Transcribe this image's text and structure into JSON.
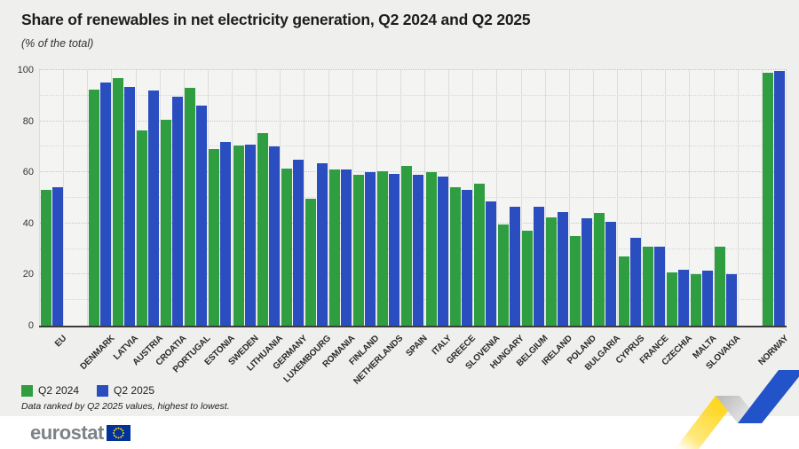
{
  "header": {
    "title": "Share of renewables in net electricity generation, Q2 2024 and Q2 2025",
    "subtitle": "(% of the total)"
  },
  "chart_data": {
    "type": "bar",
    "title": "Share of renewables in net electricity generation, Q2 2024 and Q2 2025",
    "ylabel": "% of the total",
    "ylim": [
      0,
      100
    ],
    "yticks": [
      0,
      20,
      40,
      60,
      80,
      100
    ],
    "grid": {
      "horizontal": "dotted line every 10 units",
      "vertical": "solid light line per category"
    },
    "legend_position": "bottom-left",
    "categories": [
      "EU",
      "DENMARK",
      "LATVIA",
      "AUSTRIA",
      "CROATIA",
      "PORTUGAL",
      "ESTONIA",
      "SWEDEN",
      "LITHUANIA",
      "GERMANY",
      "LUXEMBOURG",
      "ROMANIA",
      "FINLAND",
      "NETHERLANDS",
      "SPAIN",
      "ITALY",
      "GREECE",
      "SLOVENIA",
      "HUNGARY",
      "BELGIUM",
      "IRELAND",
      "POLAND",
      "BULGARIA",
      "CYPRUS",
      "FRANCE",
      "CZECHIA",
      "MALTA",
      "SLOVAKIA",
      "NORWAY"
    ],
    "series": [
      {
        "name": "Q2 2024",
        "color": "#2f9e41",
        "values": [
          53,
          92.5,
          97,
          76.5,
          80.5,
          93,
          69,
          70.5,
          75.5,
          61.5,
          49.5,
          61,
          59,
          60.5,
          62.5,
          60,
          54,
          55.5,
          39.5,
          37,
          42.5,
          35,
          44,
          27,
          31,
          21,
          20,
          31,
          99
        ]
      },
      {
        "name": "Q2 2025",
        "color": "#2a4dc0",
        "values": [
          54,
          95,
          93.5,
          92,
          89.5,
          86,
          72,
          71,
          70,
          65,
          63.5,
          61,
          60,
          59.5,
          59,
          58.5,
          53,
          48.5,
          46.5,
          46.5,
          44.5,
          42,
          40.5,
          34.5,
          31,
          22,
          21.5,
          20,
          99.5
        ]
      }
    ],
    "spacers_after_indices": [
      0,
      27
    ]
  },
  "legend": {
    "items": [
      {
        "label": "Q2 2024",
        "color": "#2f9e41"
      },
      {
        "label": "Q2 2025",
        "color": "#2a4dc0"
      }
    ]
  },
  "footnote": "Data ranked by Q2 2025 values, highest to lowest.",
  "footer": {
    "logo_text": "eurostat"
  },
  "decoration": {
    "ribbon_yellow": "#ffd617",
    "ribbon_grey": "#c3c3c3",
    "ribbon_blue": "#2353c8",
    "flag_blue": "#003399",
    "flag_star_yellow": "#ffd617"
  }
}
